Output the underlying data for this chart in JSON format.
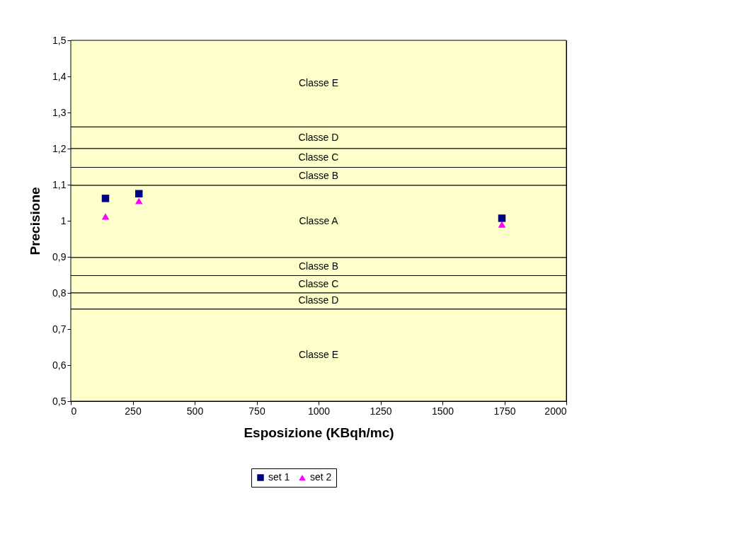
{
  "chart_data": {
    "type": "scatter",
    "xlabel": "Esposizione (KBqh/mc)",
    "ylabel": "Precisione",
    "xlim": [
      0,
      2000
    ],
    "xticks": [
      0,
      250,
      500,
      750,
      1000,
      1250,
      1500,
      1750,
      2000
    ],
    "ylim": [
      0.5,
      1.5
    ],
    "yticks": [
      {
        "value": 0.5,
        "label": "0,5"
      },
      {
        "value": 0.6,
        "label": "0,6"
      },
      {
        "value": 0.7,
        "label": "0,7"
      },
      {
        "value": 0.8,
        "label": "0,8"
      },
      {
        "value": 0.9,
        "label": "0,9"
      },
      1,
      {
        "value": 1.1,
        "label": "1,1"
      },
      {
        "value": 1.2,
        "label": "1,2"
      },
      {
        "value": 1.3,
        "label": "1,3"
      },
      {
        "value": 1.4,
        "label": "1,4"
      },
      {
        "value": 1.5,
        "label": "1,5"
      }
    ],
    "grid": false,
    "legend": "bottom",
    "bands": [
      {
        "axis": "y",
        "from": 1.26,
        "to": 1.5,
        "label": "Classe E",
        "color": "#ffffcc"
      },
      {
        "axis": "y",
        "from": 1.2,
        "to": 1.26,
        "label": "Classe D",
        "color": "#ffffcc"
      },
      {
        "axis": "y",
        "from": 1.148,
        "to": 1.2,
        "label": "Classe C",
        "color": "#ffffcc"
      },
      {
        "axis": "y",
        "from": 1.098,
        "to": 1.148,
        "label": "Classe B",
        "color": "#ffffcc"
      },
      {
        "axis": "y",
        "from": 0.898,
        "to": 1.098,
        "label": "Classe A",
        "color": "#ffffcc"
      },
      {
        "axis": "y",
        "from": 0.848,
        "to": 0.898,
        "label": "Classe B",
        "color": "#ffffcc"
      },
      {
        "axis": "y",
        "from": 0.8,
        "to": 0.848,
        "label": "Classe C",
        "color": "#ffffcc"
      },
      {
        "axis": "y",
        "from": 0.755,
        "to": 0.8,
        "label": "Classe D",
        "color": "#ffffcc"
      },
      {
        "axis": "y",
        "from": 0.5,
        "to": 0.755,
        "label": "Classe E",
        "color": "#ffffcc"
      }
    ],
    "series": [
      {
        "name": "set 1",
        "color": "#000080",
        "marker": "square",
        "x": [
          140,
          275,
          1740
        ],
        "values": [
          1.062,
          1.075,
          1.007
        ]
      },
      {
        "name": "set 2",
        "color": "#ff00ff",
        "marker": "triangle",
        "x": [
          140,
          275,
          1740
        ],
        "values": [
          1.012,
          1.055,
          0.99
        ]
      }
    ]
  }
}
